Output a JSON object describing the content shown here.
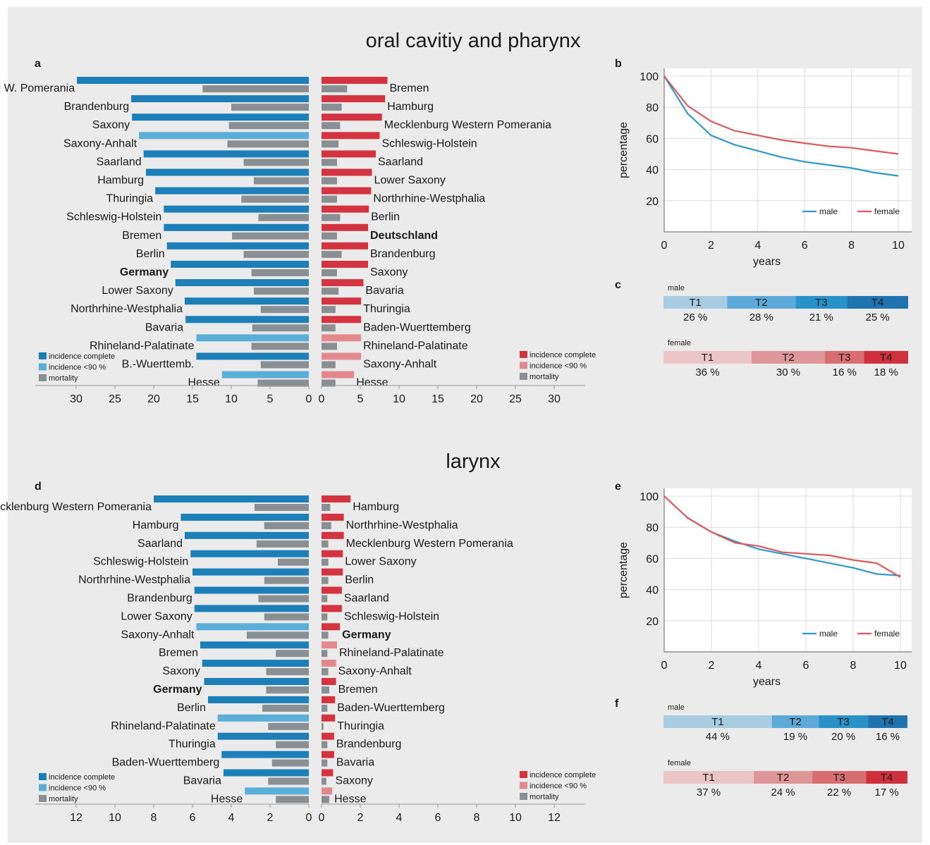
{
  "sections": [
    {
      "title": "oral cavitiy and pharynx",
      "bar_panel_label": "a",
      "survival_panel_label": "b",
      "stage_panel_label": "c"
    },
    {
      "title": "larynx",
      "bar_panel_label": "d",
      "survival_panel_label": "e",
      "stage_panel_label": "f"
    }
  ],
  "colors": {
    "male_complete": "#1c7fb8",
    "male_partial": "#5aaed8",
    "female_complete": "#d4343f",
    "female_partial": "#e3888e",
    "mortality": "#8a8f93",
    "male_line": "#2f98c9",
    "female_line": "#dc5a5e"
  },
  "chart_data": [
    {
      "type": "bar",
      "panel": "a",
      "title": "oral cavitiy and pharynx",
      "orientation": "horizontal-butterfly",
      "male": {
        "xlim": [
          0,
          34
        ],
        "xticks": [
          30,
          25,
          20,
          15,
          10,
          5,
          0
        ],
        "categories": [
          "Mecklenburg W. Pomerania",
          "Brandenburg",
          "Saxony",
          "Saxony-Anhalt",
          "Saarland",
          "Hamburg",
          "Thuringia",
          "Schleswig-Holstein",
          "Bremen",
          "Berlin",
          "Germany",
          "Lower Saxony",
          "Northrhine-Westphalia",
          "Bavaria",
          "Rhineland-Palatinate",
          "B.-Wuerttemb.",
          "Hesse"
        ],
        "incidence": [
          29.9,
          22.9,
          22.8,
          21.9,
          21.3,
          21.0,
          19.8,
          18.7,
          18.7,
          18.3,
          17.8,
          17.2,
          16.0,
          15.9,
          14.5,
          14.5,
          11.2
        ],
        "incidence_below_90": [
          false,
          false,
          false,
          true,
          false,
          false,
          false,
          false,
          false,
          false,
          false,
          false,
          false,
          false,
          true,
          false,
          true
        ],
        "mortality": [
          13.7,
          10.0,
          10.3,
          10.5,
          8.4,
          7.1,
          8.7,
          6.5,
          9.9,
          8.4,
          7.4,
          7.1,
          6.2,
          7.3,
          7.4,
          6.2,
          6.6
        ],
        "bold": [
          "Germany"
        ]
      },
      "female": {
        "xlim": [
          0,
          34
        ],
        "xticks": [
          0,
          5,
          10,
          15,
          20,
          25,
          30
        ],
        "categories": [
          "Bremen",
          "Hamburg",
          "Mecklenburg Western Pomerania",
          "Schleswig-Holstein",
          "Saarland",
          "Lower Saxony",
          "Northrhine-Westphalia",
          "Berlin",
          "Deutschland",
          "Brandenburg",
          "Saxony",
          "Bavaria",
          "Thuringia",
          "Baden-Wuerttemberg",
          "Rhineland-Palatinate",
          "Saxony-Anhalt",
          "Hesse"
        ],
        "incidence": [
          8.5,
          8.2,
          7.8,
          7.5,
          7.0,
          6.5,
          6.4,
          6.1,
          6.0,
          6.0,
          6.0,
          5.4,
          5.1,
          5.1,
          5.1,
          5.1,
          4.2
        ],
        "incidence_below_90": [
          false,
          false,
          false,
          false,
          false,
          false,
          false,
          false,
          false,
          false,
          false,
          false,
          false,
          false,
          true,
          true,
          true
        ],
        "mortality": [
          3.3,
          2.6,
          2.4,
          2.2,
          2.0,
          2.0,
          2.0,
          2.4,
          2.0,
          2.6,
          2.0,
          2.2,
          1.8,
          1.8,
          2.0,
          1.8,
          1.8
        ],
        "bold": [
          "Deutschland"
        ]
      },
      "legend_male": [
        "incidence complete",
        "incidence <90 %",
        "mortality"
      ],
      "legend_female": [
        "incidence complete",
        "incidence <90 %",
        "mortality"
      ]
    },
    {
      "type": "line",
      "panel": "b",
      "xlabel": "years",
      "ylabel": "percentage",
      "xlim": [
        0,
        10
      ],
      "ylim": [
        0,
        105
      ],
      "xticks": [
        0,
        2,
        4,
        6,
        8,
        10
      ],
      "yticks": [
        20,
        40,
        60,
        80,
        100
      ],
      "legend": "bottom-right",
      "grid": true,
      "series": [
        {
          "name": "male",
          "x": [
            0,
            1,
            2,
            3,
            4,
            5,
            6,
            7,
            8,
            9,
            10
          ],
          "y": [
            100,
            76,
            62,
            56,
            52,
            48,
            45,
            43,
            41,
            38,
            36
          ]
        },
        {
          "name": "female",
          "x": [
            0,
            1,
            2,
            3,
            4,
            5,
            6,
            7,
            8,
            9,
            10
          ],
          "y": [
            100,
            81,
            71,
            65,
            62,
            59,
            57,
            55,
            54,
            52,
            50
          ]
        }
      ]
    },
    {
      "type": "bar",
      "panel": "c",
      "orientation": "stacked-100",
      "series": [
        {
          "name": "male",
          "categories": [
            "T1",
            "T2",
            "T3",
            "T4"
          ],
          "values": [
            26,
            28,
            21,
            25
          ],
          "labels": [
            "26 %",
            "28 %",
            "21 %",
            "25 %"
          ]
        },
        {
          "name": "female",
          "categories": [
            "T1",
            "T2",
            "T3",
            "T4"
          ],
          "values": [
            36,
            30,
            16,
            18
          ],
          "labels": [
            "36 %",
            "30 %",
            "16 %",
            "18 %"
          ]
        }
      ]
    },
    {
      "type": "bar",
      "panel": "d",
      "title": "larynx",
      "orientation": "horizontal-butterfly",
      "male": {
        "xlim": [
          0,
          14
        ],
        "xticks": [
          12,
          10,
          8,
          6,
          4,
          2,
          0
        ],
        "categories": [
          "Mecklenburg Western Pomerania",
          "Hamburg",
          "Saarland",
          "Schleswig-Holstein",
          "Northrhine-Westphalia",
          "Brandenburg",
          "Lower Saxony",
          "Saxony-Anhalt",
          "Bremen",
          "Saxony",
          "Germany",
          "Berlin",
          "Rhineland-Palatinate",
          "Thuringia",
          "Baden-Wuerttemberg",
          "Bavaria",
          "Hesse"
        ],
        "incidence": [
          8.0,
          6.6,
          6.4,
          6.1,
          6.0,
          5.9,
          5.9,
          5.8,
          5.6,
          5.5,
          5.4,
          5.2,
          4.7,
          4.7,
          4.5,
          4.4,
          3.3
        ],
        "incidence_below_90": [
          false,
          false,
          false,
          false,
          false,
          false,
          false,
          true,
          false,
          false,
          false,
          false,
          true,
          false,
          false,
          false,
          true
        ],
        "mortality": [
          2.8,
          2.3,
          2.7,
          1.6,
          2.3,
          2.6,
          2.3,
          3.2,
          1.7,
          2.2,
          2.2,
          2.4,
          2.1,
          1.7,
          1.9,
          2.1,
          1.7
        ],
        "bold": [
          "Germany"
        ]
      },
      "female": {
        "xlim": [
          0,
          14
        ],
        "xticks": [
          0,
          2,
          4,
          6,
          8,
          10,
          12
        ],
        "categories": [
          "Hamburg",
          "Northrhine-Westphalia",
          "Mecklenburg Western Pomerania",
          "Lower Saxony",
          "Berlin",
          "Saarland",
          "Schleswig-Holstein",
          "Germany",
          "Rhineland-Palatinate",
          "Saxony-Anhalt",
          "Bremen",
          "Baden-Wuerttemberg",
          "Thuringia",
          "Brandenburg",
          "Bavaria",
          "Saxony",
          "Hesse"
        ],
        "incidence": [
          1.5,
          1.15,
          1.15,
          1.1,
          1.1,
          1.05,
          1.05,
          0.95,
          0.8,
          0.75,
          0.75,
          0.7,
          0.7,
          0.65,
          0.65,
          0.6,
          0.55
        ],
        "incidence_below_90": [
          false,
          false,
          false,
          false,
          false,
          false,
          false,
          false,
          true,
          true,
          false,
          false,
          false,
          false,
          false,
          false,
          true
        ],
        "mortality": [
          0.45,
          0.5,
          0.35,
          0.35,
          0.35,
          0.3,
          0.3,
          0.35,
          0.3,
          0.35,
          0.4,
          0.3,
          0.1,
          0.3,
          0.3,
          0.25,
          0.4
        ],
        "bold": [
          "Germany"
        ]
      },
      "legend_male": [
        "incidence complete",
        "incidence <90 %",
        "mortality"
      ],
      "legend_female": [
        "incidence complete",
        "incidence <90 %",
        "mortality"
      ]
    },
    {
      "type": "line",
      "panel": "e",
      "xlabel": "years",
      "ylabel": "percentage",
      "xlim": [
        0,
        10
      ],
      "ylim": [
        0,
        105
      ],
      "xticks": [
        0,
        2,
        4,
        6,
        8,
        10
      ],
      "yticks": [
        20,
        40,
        60,
        80,
        100
      ],
      "legend": "bottom-right",
      "grid": true,
      "series": [
        {
          "name": "male",
          "x": [
            0,
            1,
            2,
            3,
            4,
            5,
            6,
            7,
            8,
            9,
            10
          ],
          "y": [
            100,
            86,
            77,
            71,
            66,
            63,
            60,
            57,
            54,
            50,
            49
          ]
        },
        {
          "name": "female",
          "x": [
            0,
            1,
            2,
            3,
            4,
            5,
            6,
            7,
            8,
            9,
            10
          ],
          "y": [
            100,
            86,
            77,
            70,
            68,
            64,
            63,
            62,
            59,
            57,
            48
          ]
        }
      ]
    },
    {
      "type": "bar",
      "panel": "f",
      "orientation": "stacked-100",
      "series": [
        {
          "name": "male",
          "categories": [
            "T1",
            "T2",
            "T3",
            "T4"
          ],
          "values": [
            44,
            19,
            20,
            16
          ],
          "labels": [
            "44 %",
            "19 %",
            "20 %",
            "16 %"
          ]
        },
        {
          "name": "female",
          "categories": [
            "T1",
            "T2",
            "T3",
            "T4"
          ],
          "values": [
            37,
            24,
            22,
            17
          ],
          "labels": [
            "37 %",
            "24 %",
            "22 %",
            "17 %"
          ]
        }
      ]
    }
  ]
}
